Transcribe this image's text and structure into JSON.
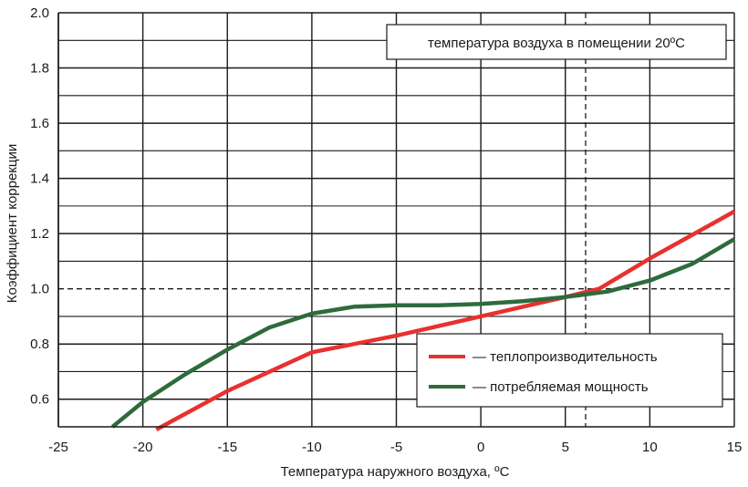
{
  "chart_data": {
    "type": "line",
    "title": "",
    "annotation": "температура воздуха в помещении 20ºС",
    "xlabel": "Температура наружного воздуха, ºС",
    "ylabel": "Коэффициент коррекции",
    "xlim": [
      -25,
      15
    ],
    "ylim": [
      0.5,
      2.0
    ],
    "x_ticks": [
      "-25",
      "-20",
      "-15",
      "-10",
      "-5",
      "0",
      "5",
      "10",
      "15"
    ],
    "y_ticks": [
      "0.6",
      "0.8",
      "1.0",
      "1.2",
      "1.4",
      "1.6",
      "1.8",
      "2.0"
    ],
    "grid": true,
    "legend_position": "bottom-right",
    "reference_lines": {
      "y": 1.0,
      "x": 6.2
    },
    "series": [
      {
        "name": "— теплопроизводительность",
        "color": "#e8312f",
        "x": [
          -19.2,
          -15,
          -10,
          -5,
          0,
          5,
          7,
          10,
          15
        ],
        "y": [
          0.49,
          0.63,
          0.77,
          0.83,
          0.9,
          0.97,
          1.0,
          1.11,
          1.28
        ]
      },
      {
        "name": "— потребляемая мощность",
        "color": "#2e6b3c",
        "x": [
          -21.8,
          -20,
          -17.5,
          -15,
          -12.5,
          -10,
          -7.5,
          -5,
          -2.5,
          0,
          2.5,
          5,
          7.5,
          10,
          12.5,
          15
        ],
        "y": [
          0.5,
          0.59,
          0.69,
          0.78,
          0.86,
          0.91,
          0.935,
          0.94,
          0.94,
          0.945,
          0.955,
          0.97,
          0.99,
          1.03,
          1.09,
          1.18
        ]
      }
    ]
  }
}
